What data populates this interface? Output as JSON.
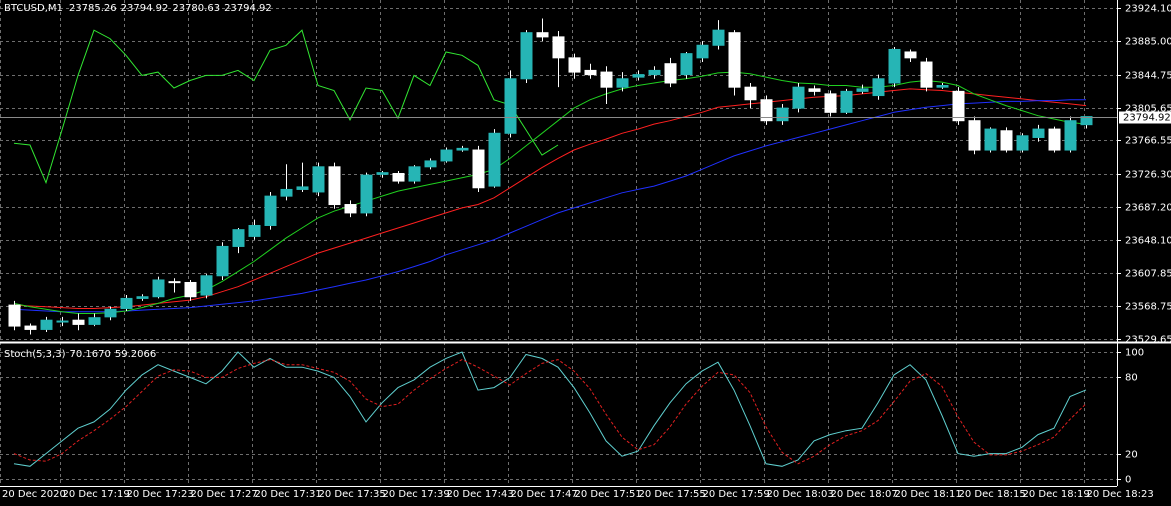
{
  "chart_data": [
    {
      "type": "candlestick",
      "title": "BTCUSD,M1",
      "date_label": "20 Dec 2020",
      "categories": [
        null,
        null,
        null,
        "20 Dec 17:19",
        null,
        null,
        null,
        "20 Dec 17:23",
        null,
        null,
        null,
        "20 Dec 17:27",
        null,
        null,
        null,
        "20 Dec 17:31",
        null,
        null,
        null,
        "20 Dec 17:35",
        null,
        null,
        null,
        "20 Dec 17:39",
        null,
        null,
        null,
        "20 Dec 17:43",
        null,
        null,
        null,
        "20 Dec 17:47",
        null,
        null,
        null,
        "20 Dec 17:51",
        null,
        null,
        null,
        "20 Dec 17:55",
        null,
        null,
        null,
        "20 Dec 17:59",
        null,
        null,
        null,
        "20 Dec 18:03",
        null,
        null,
        null,
        "20 Dec 18:07",
        null,
        null,
        null,
        "20 Dec 18:11",
        null,
        null,
        null,
        "20 Dec 18:15",
        null,
        null,
        null,
        "20 Dec 18:19",
        null,
        null,
        null,
        "20 Dec 18:23"
      ],
      "open": [
        23570,
        23545,
        23541,
        23550,
        23552,
        23547,
        23556,
        23566,
        23578,
        23580,
        23598,
        23597,
        23582,
        23605,
        23640,
        23652,
        23665,
        23700,
        23708,
        23705,
        23735,
        23690,
        23680,
        23726,
        23727,
        23718,
        23735,
        23742,
        23755,
        23755,
        23712,
        23775,
        23840,
        23895,
        23890,
        23865,
        23850,
        23848,
        23830,
        23842,
        23845,
        23858,
        23845,
        23865,
        23880,
        23895,
        23830,
        23815,
        23790,
        23805,
        23828,
        23822,
        23800,
        23825,
        23820,
        23835,
        23872,
        23860,
        23830,
        23825,
        23790,
        23755,
        23778,
        23755,
        23770,
        23780,
        23755,
        23785.26
      ],
      "high": [
        23575,
        23548,
        23556,
        23556,
        23560,
        23560,
        23568,
        23582,
        23583,
        23604,
        23602,
        23600,
        23607,
        23645,
        23662,
        23672,
        23705,
        23738,
        23740,
        23740,
        23740,
        23695,
        23728,
        23730,
        23730,
        23737,
        23745,
        23758,
        23760,
        23760,
        23780,
        23850,
        23898,
        23912,
        23897,
        23870,
        23858,
        23855,
        23848,
        23850,
        23855,
        23865,
        23872,
        23885,
        23910,
        23898,
        23835,
        23820,
        23810,
        23835,
        23832,
        23826,
        23828,
        23833,
        23845,
        23878,
        23875,
        23865,
        23835,
        23830,
        23795,
        23782,
        23782,
        23775,
        23785,
        23783,
        23795,
        23794.92
      ],
      "low": [
        23540,
        23535,
        23538,
        23545,
        23540,
        23545,
        23552,
        23563,
        23575,
        23578,
        23585,
        23575,
        23578,
        23600,
        23632,
        23648,
        23660,
        23695,
        23705,
        23700,
        23685,
        23675,
        23676,
        23722,
        23715,
        23715,
        23732,
        23740,
        23753,
        23705,
        23710,
        23770,
        23835,
        23885,
        23830,
        23840,
        23840,
        23810,
        23825,
        23838,
        23840,
        23830,
        23840,
        23860,
        23875,
        23820,
        23805,
        23785,
        23785,
        23800,
        23820,
        23795,
        23798,
        23822,
        23815,
        23830,
        23860,
        23825,
        23828,
        23785,
        23750,
        23752,
        23752,
        23752,
        23765,
        23752,
        23752,
        23780.63
      ],
      "close": [
        23545,
        23541,
        23552,
        23551,
        23547,
        23555,
        23565,
        23578,
        23580,
        23600,
        23597,
        23580,
        23605,
        23640,
        23660,
        23665,
        23700,
        23708,
        23711,
        23735,
        23690,
        23680,
        23725,
        23728,
        23718,
        23735,
        23742,
        23755,
        23757,
        23710,
        23775,
        23840,
        23895,
        23890,
        23865,
        23848,
        23845,
        23830,
        23840,
        23845,
        23850,
        23835,
        23870,
        23880,
        23898,
        23830,
        23815,
        23790,
        23805,
        23830,
        23825,
        23800,
        23825,
        23828,
        23840,
        23875,
        23865,
        23830,
        23832,
        23790,
        23755,
        23780,
        23755,
        23772,
        23780,
        23755,
        23790,
        23794.92
      ],
      "bull_color": "#26b5b5",
      "bear_color": "#ffffff",
      "series": [
        {
          "color": "#ff2020",
          "values": [
            23570,
            23569,
            23568,
            23567,
            23566,
            23566,
            23567,
            23568,
            23570,
            23572,
            23574,
            23576,
            23580,
            23586,
            23592,
            23600,
            23608,
            23616,
            23624,
            23632,
            23638,
            23644,
            23650,
            23656,
            23662,
            23668,
            23674,
            23680,
            23686,
            23690,
            23698,
            23710,
            23722,
            23734,
            23745,
            23755,
            23762,
            23768,
            23775,
            23780,
            23786,
            23790,
            23795,
            23800,
            23806,
            23808,
            23810,
            23812,
            23814,
            23816,
            23818,
            23819,
            23820,
            23822,
            23824,
            23826,
            23828,
            23827,
            23826,
            23824,
            23822,
            23820,
            23818,
            23816,
            23814,
            23812,
            23810,
            23808
          ]
        },
        {
          "color": "#2030ff",
          "values": [
            23565,
            23564,
            23563,
            23562,
            23562,
            23562,
            23562,
            23563,
            23564,
            23565,
            23566,
            23567,
            23569,
            23571,
            23573,
            23575,
            23578,
            23581,
            23584,
            23588,
            23592,
            23596,
            23600,
            23605,
            23610,
            23616,
            23622,
            23630,
            23636,
            23642,
            23648,
            23656,
            23664,
            23672,
            23680,
            23686,
            23692,
            23698,
            23704,
            23708,
            23712,
            23718,
            23724,
            23732,
            23740,
            23748,
            23754,
            23760,
            23765,
            23770,
            23775,
            23780,
            23785,
            23790,
            23795,
            23800,
            23803,
            23806,
            23808,
            23810,
            23811,
            23812,
            23813,
            23813,
            23814,
            23814,
            23815,
            23815
          ]
        },
        {
          "color": "#20d020",
          "values": [
            23572,
            23568,
            23565,
            23562,
            23560,
            23560,
            23561,
            23563,
            23567,
            23572,
            23578,
            23582,
            23588,
            23598,
            23610,
            23622,
            23636,
            23650,
            23662,
            23674,
            23682,
            23688,
            23694,
            23700,
            23706,
            23710,
            23714,
            23718,
            23722,
            23726,
            23732,
            23745,
            23760,
            23775,
            23790,
            23805,
            23815,
            23822,
            23828,
            23832,
            23835,
            23838,
            23840,
            23843,
            23847,
            23848,
            23846,
            23842,
            23838,
            23835,
            23834,
            23832,
            23832,
            23830,
            23830,
            23832,
            23836,
            23838,
            23836,
            23832,
            23822,
            23815,
            23808,
            23802,
            23796,
            23792,
            23788,
            23786
          ]
        },
        {
          "color": "#32e632",
          "values": [
            23763,
            23761,
            23716,
            23779,
            23844,
            23898,
            23888,
            23868,
            23844,
            23848,
            23829,
            23838,
            23844,
            23844,
            23850,
            23838,
            23874,
            23880,
            23898,
            23832,
            23826,
            23791,
            23829,
            23826,
            23793,
            23844,
            23832,
            23872,
            23868,
            23856,
            23815,
            23809,
            23779,
            23749,
            23761,
            null,
            null,
            null,
            null,
            null,
            null,
            null,
            null,
            null,
            null,
            null,
            null,
            null,
            null,
            null,
            null,
            null,
            null,
            null,
            null,
            null,
            null,
            null,
            null,
            null,
            null,
            null,
            null,
            null,
            null,
            null,
            null,
            null
          ]
        }
      ],
      "ylim": [
        23526,
        23934
      ],
      "yticks": [
        {
          "value": 23924.1,
          "label": "23924.10"
        },
        {
          "value": 23885,
          "label": "23885.00"
        },
        23844.75,
        23805.65,
        23766.55,
        {
          "value": 23726.3,
          "label": "23726.30"
        },
        {
          "value": 23687.2,
          "label": "23687.20"
        },
        {
          "value": 23648.1,
          "label": "23648.10"
        },
        23607.85,
        23568.75,
        23529.65
      ],
      "grid": true
    },
    {
      "type": "line",
      "title": "Stoch(5,3,3)",
      "readout": [
        "70.1670",
        "59.2066"
      ],
      "series": [
        {
          "color": "#5fcfcf",
          "values": [
            12,
            10,
            20,
            30,
            40,
            45,
            55,
            70,
            82,
            90,
            85,
            80,
            75,
            85,
            100,
            88,
            95,
            88,
            88,
            85,
            80,
            65,
            45,
            60,
            72,
            78,
            88,
            95,
            100,
            70,
            72,
            80,
            98,
            95,
            88,
            72,
            52,
            30,
            18,
            22,
            42,
            60,
            75,
            85,
            92,
            70,
            42,
            12,
            10,
            15,
            30,
            35,
            38,
            40,
            60,
            82,
            90,
            78,
            50,
            20,
            18,
            20,
            20,
            25,
            35,
            40,
            65,
            70.167
          ]
        },
        {
          "color": "#e02020",
          "dashed": true,
          "values": [
            20,
            15,
            14,
            20,
            30,
            38,
            47,
            57,
            69,
            81,
            86,
            85,
            80,
            80,
            87,
            91,
            94,
            90,
            90,
            87,
            84,
            77,
            63,
            57,
            59,
            70,
            79,
            87,
            94,
            88,
            81,
            74,
            83,
            91,
            94,
            85,
            71,
            51,
            33,
            23,
            27,
            41,
            59,
            73,
            84,
            82,
            68,
            41,
            21,
            12,
            18,
            27,
            34,
            38,
            46,
            61,
            77,
            83,
            73,
            49,
            29,
            19,
            19,
            22,
            27,
            33,
            47,
            59.2066
          ]
        }
      ],
      "ylim": [
        -5.5,
        106.3
      ],
      "yticks": [
        100,
        80,
        20,
        0
      ],
      "grid": true
    }
  ]
}
